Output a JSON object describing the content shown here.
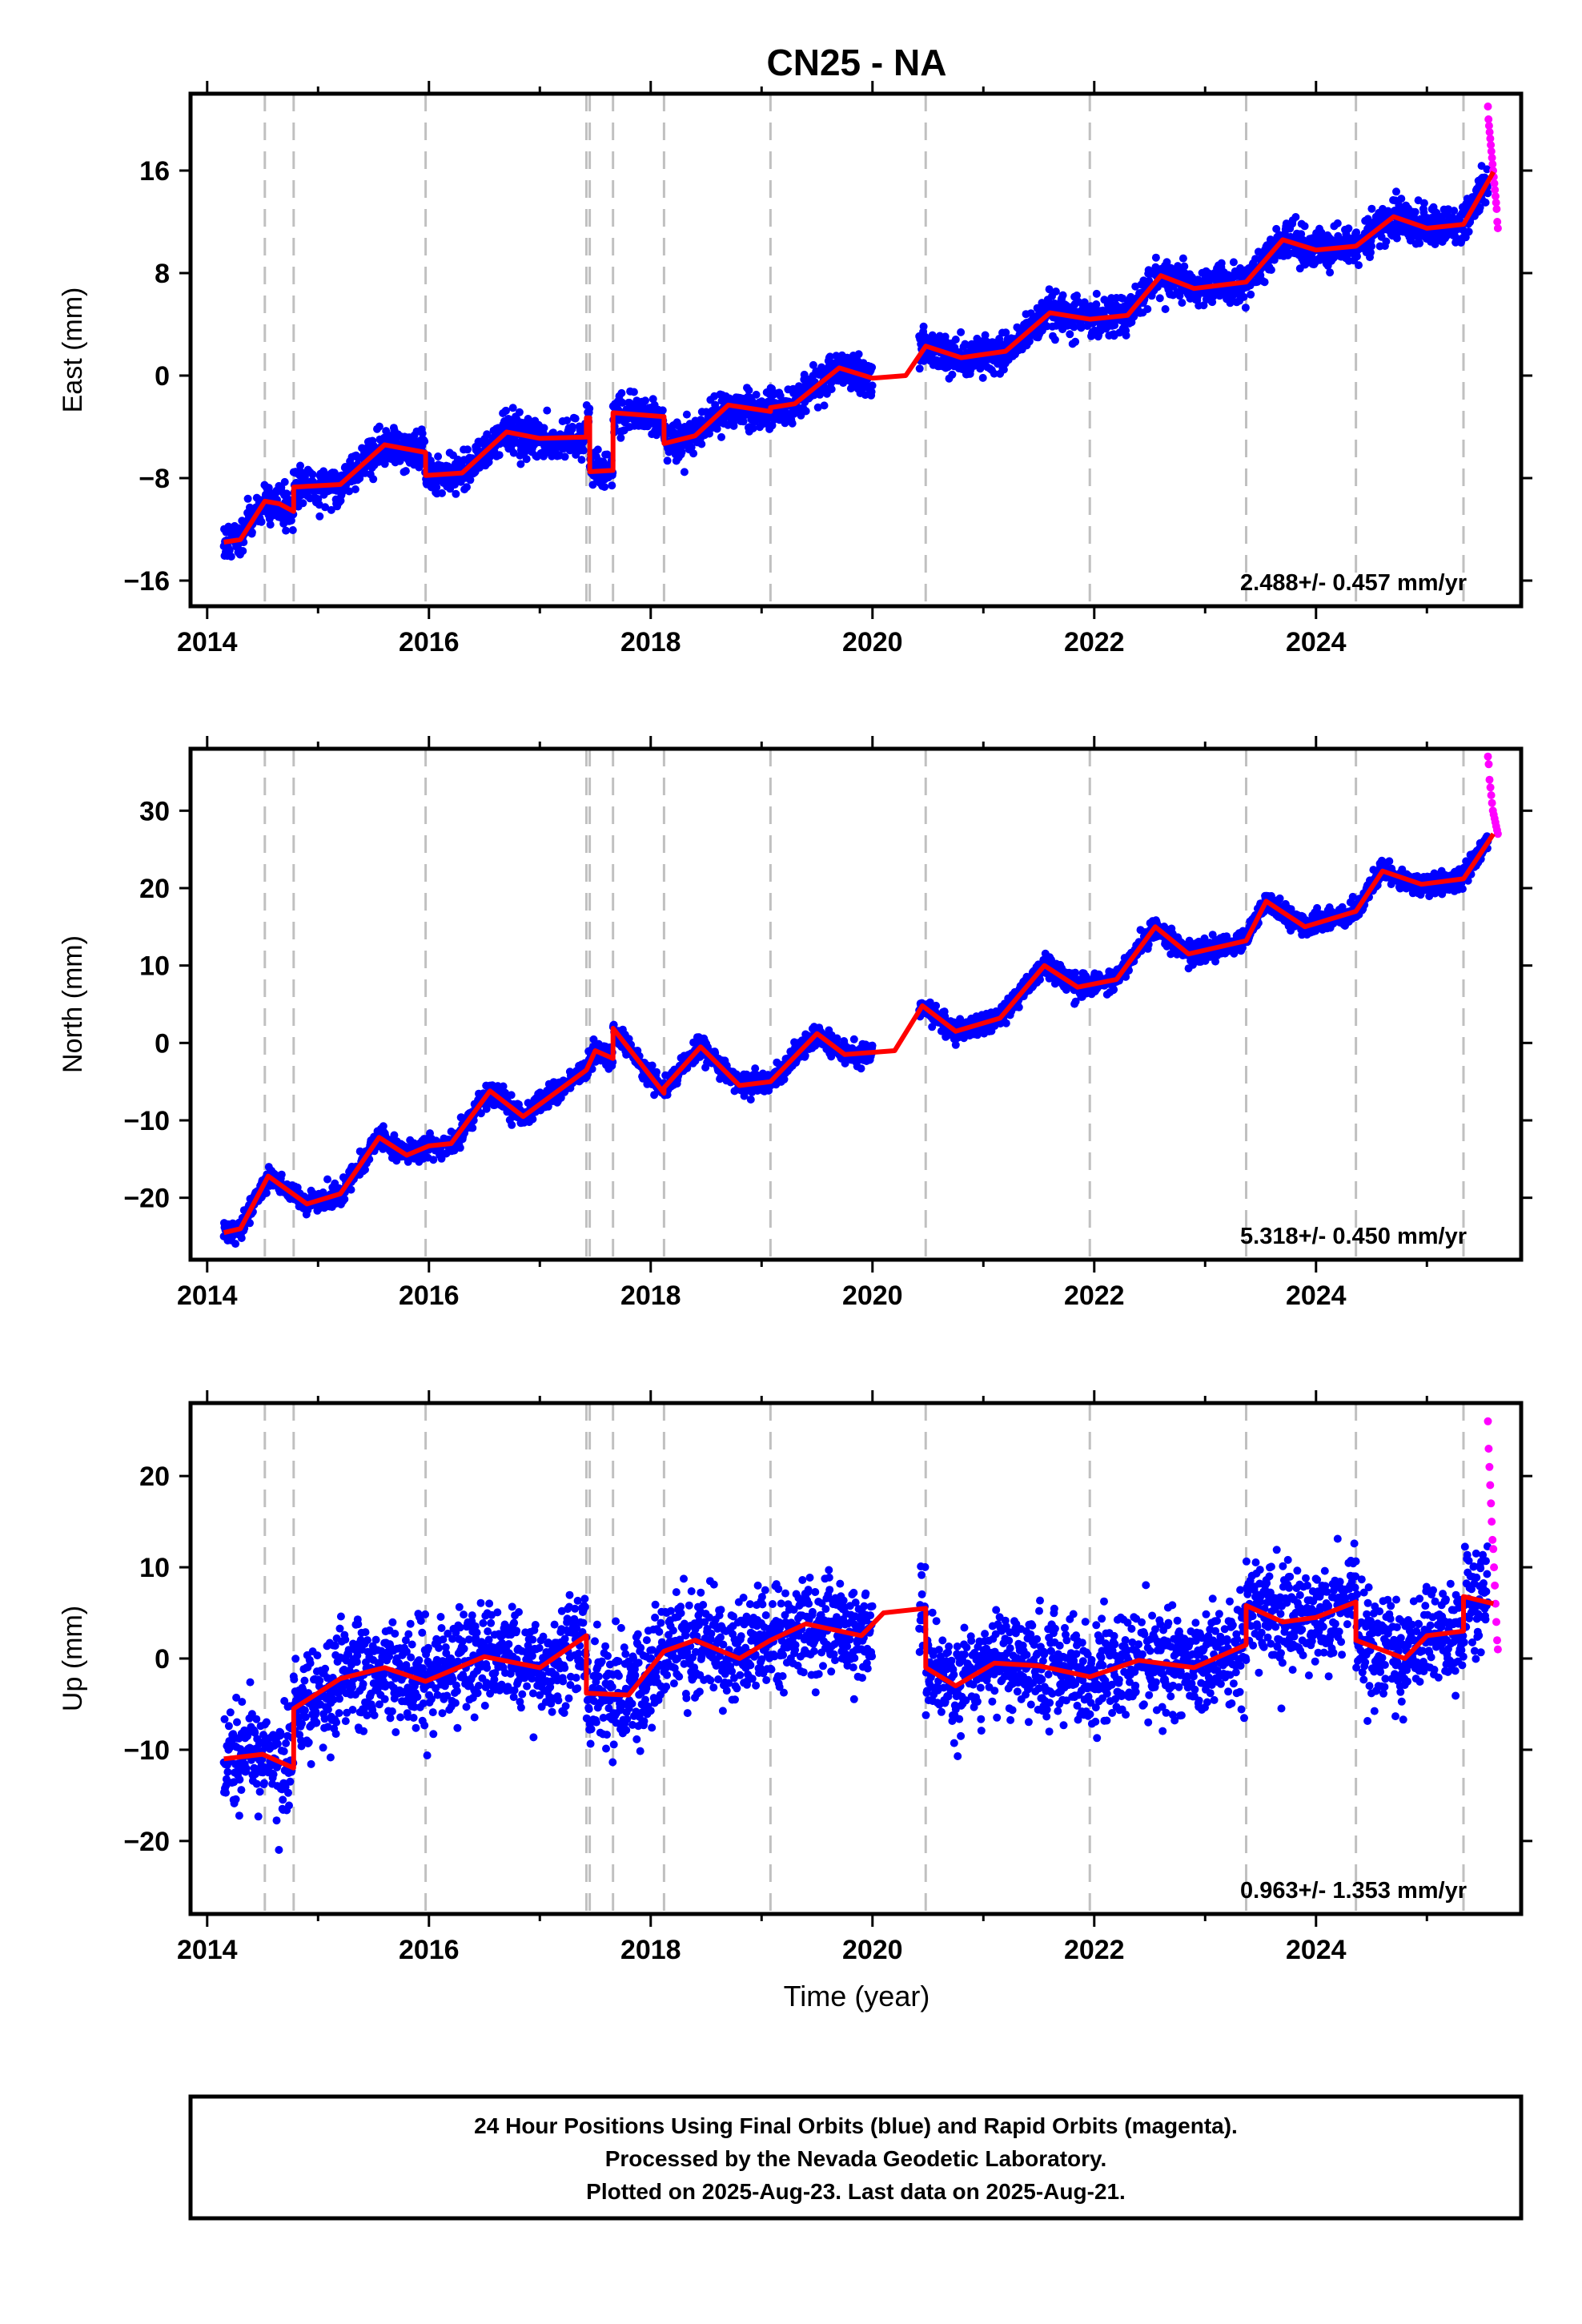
{
  "title": "CN25 - NA",
  "xlabel": "Time (year)",
  "caption": [
    "24 Hour Positions Using Final Orbits (blue) and Rapid Orbits (magenta).",
    "Processed by the Nevada Geodetic Laboratory.",
    "Plotted on 2025-Aug-23. Last data on 2025-Aug-21."
  ],
  "colors": {
    "final": "#0000ff",
    "rapid": "#ff00ff",
    "model": "#ff0000",
    "steps": "#c0c0c0",
    "axes": "#000000"
  },
  "chart_data": [
    {
      "type": "scatter",
      "ylabel": "East (mm)",
      "xlim": [
        2013.85,
        2025.85
      ],
      "ylim": [
        -18,
        22
      ],
      "xticks": [
        2014,
        2016,
        2018,
        2020,
        2022,
        2024
      ],
      "yticks": [
        -16,
        -8,
        0,
        8,
        16
      ],
      "rate_label": "2.488+/- 0.457 mm/yr",
      "step_epochs": [
        2014.52,
        2014.78,
        2015.97,
        2017.42,
        2017.45,
        2017.66,
        2018.12,
        2019.08,
        2020.48,
        2021.96,
        2023.37,
        2024.36,
        2025.33
      ],
      "data_start": 2014.15,
      "data_end": 2025.55,
      "rapid_start": 2025.55,
      "rapid_end": 2025.64,
      "gap": [
        2020.0,
        2020.42
      ],
      "noise_sigma": 1.3,
      "rapid_points": [
        21,
        20,
        19.5,
        19,
        18.5,
        18,
        17.5,
        17,
        16.5,
        16,
        15.5,
        15,
        14.5,
        14,
        13.5,
        13,
        12,
        11.5
      ],
      "model": [
        [
          2014.15,
          -13.0
        ],
        [
          2014.3,
          -12.8
        ],
        [
          2014.52,
          -9.8
        ],
        [
          2014.65,
          -10.0
        ],
        [
          2014.78,
          -10.6
        ],
        [
          2014.78,
          -8.7
        ],
        [
          2015.2,
          -8.5
        ],
        [
          2015.6,
          -5.4
        ],
        [
          2015.97,
          -6.0
        ],
        [
          2015.97,
          -7.8
        ],
        [
          2016.3,
          -7.6
        ],
        [
          2016.7,
          -4.4
        ],
        [
          2017.0,
          -4.9
        ],
        [
          2017.42,
          -4.8
        ],
        [
          2017.42,
          -3.3
        ],
        [
          2017.45,
          -3.3
        ],
        [
          2017.45,
          -7.5
        ],
        [
          2017.66,
          -7.4
        ],
        [
          2017.66,
          -2.9
        ],
        [
          2018.12,
          -3.2
        ],
        [
          2018.12,
          -5.3
        ],
        [
          2018.4,
          -4.7
        ],
        [
          2018.7,
          -2.3
        ],
        [
          2019.08,
          -2.8
        ],
        [
          2019.08,
          -2.5
        ],
        [
          2019.3,
          -2.2
        ],
        [
          2019.7,
          0.6
        ],
        [
          2020.0,
          -0.2
        ],
        [
          2020.3,
          0.0
        ],
        [
          2020.48,
          2.3
        ],
        [
          2020.8,
          1.4
        ],
        [
          2021.2,
          1.9
        ],
        [
          2021.6,
          4.9
        ],
        [
          2021.96,
          4.4
        ],
        [
          2022.3,
          4.7
        ],
        [
          2022.6,
          7.8
        ],
        [
          2022.9,
          6.8
        ],
        [
          2023.37,
          7.3
        ],
        [
          2023.7,
          10.6
        ],
        [
          2024.0,
          9.8
        ],
        [
          2024.36,
          10.1
        ],
        [
          2024.7,
          12.4
        ],
        [
          2025.0,
          11.5
        ],
        [
          2025.33,
          11.8
        ],
        [
          2025.6,
          15.9
        ]
      ]
    },
    {
      "type": "scatter",
      "ylabel": "North (mm)",
      "xlim": [
        2013.85,
        2025.85
      ],
      "ylim": [
        -28,
        38
      ],
      "xticks": [
        2014,
        2016,
        2018,
        2020,
        2022,
        2024
      ],
      "yticks": [
        -20,
        -10,
        0,
        10,
        20,
        30
      ],
      "rate_label": "5.318+/- 0.450 mm/yr",
      "step_epochs": [
        2014.52,
        2014.78,
        2015.97,
        2017.42,
        2017.45,
        2017.66,
        2018.12,
        2019.08,
        2020.48,
        2021.96,
        2023.37,
        2024.36,
        2025.33
      ],
      "data_start": 2014.15,
      "data_end": 2025.55,
      "rapid_start": 2025.55,
      "rapid_end": 2025.64,
      "gap": [
        2020.0,
        2020.42
      ],
      "noise_sigma": 1.2,
      "rapid_points": [
        37,
        36,
        34,
        33,
        32,
        31,
        30,
        29.5,
        29,
        28.5,
        28,
        27.5,
        27
      ],
      "model": [
        [
          2014.15,
          -24.5
        ],
        [
          2014.3,
          -24.0
        ],
        [
          2014.55,
          -17.2
        ],
        [
          2014.9,
          -20.8
        ],
        [
          2015.2,
          -19.5
        ],
        [
          2015.55,
          -12.2
        ],
        [
          2015.8,
          -14.5
        ],
        [
          2016.0,
          -13.3
        ],
        [
          2016.2,
          -13.0
        ],
        [
          2016.55,
          -6.2
        ],
        [
          2016.85,
          -9.5
        ],
        [
          2017.42,
          -3.5
        ],
        [
          2017.5,
          -1.0
        ],
        [
          2017.66,
          -2.0
        ],
        [
          2017.66,
          1.9
        ],
        [
          2018.12,
          -6.5
        ],
        [
          2018.12,
          -5.8
        ],
        [
          2018.45,
          -0.5
        ],
        [
          2018.8,
          -5.5
        ],
        [
          2019.08,
          -5.0
        ],
        [
          2019.5,
          1.2
        ],
        [
          2019.75,
          -1.5
        ],
        [
          2020.2,
          -1.0
        ],
        [
          2020.45,
          4.8
        ],
        [
          2020.75,
          1.5
        ],
        [
          2021.15,
          3.2
        ],
        [
          2021.55,
          10.0
        ],
        [
          2021.85,
          7.2
        ],
        [
          2022.2,
          8.2
        ],
        [
          2022.55,
          15.0
        ],
        [
          2022.85,
          11.5
        ],
        [
          2023.37,
          13.2
        ],
        [
          2023.55,
          18.3
        ],
        [
          2023.9,
          15.0
        ],
        [
          2024.36,
          17.0
        ],
        [
          2024.6,
          22.2
        ],
        [
          2024.95,
          20.5
        ],
        [
          2025.33,
          21.2
        ],
        [
          2025.6,
          27.0
        ]
      ]
    },
    {
      "type": "scatter",
      "ylabel": "Up (mm)",
      "xlim": [
        2013.85,
        2025.85
      ],
      "ylim": [
        -28,
        28
      ],
      "xticks": [
        2014,
        2016,
        2018,
        2020,
        2022,
        2024
      ],
      "yticks": [
        -20,
        -10,
        0,
        10,
        20
      ],
      "rate_label": "0.963+/- 1.353 mm/yr",
      "step_epochs": [
        2014.52,
        2014.78,
        2015.97,
        2017.42,
        2017.45,
        2017.66,
        2018.12,
        2019.08,
        2020.48,
        2021.96,
        2023.37,
        2024.36,
        2025.33
      ],
      "data_start": 2014.15,
      "data_end": 2025.55,
      "rapid_start": 2025.55,
      "rapid_end": 2025.64,
      "gap": [
        2020.0,
        2020.42
      ],
      "noise_sigma": 4.8,
      "rapid_points": [
        26,
        23,
        21,
        19,
        17,
        15,
        13,
        12,
        10,
        8,
        6,
        4,
        2,
        1
      ],
      "model": [
        [
          2014.15,
          -11.0
        ],
        [
          2014.5,
          -10.5
        ],
        [
          2014.78,
          -12.0
        ],
        [
          2014.78,
          -5.5
        ],
        [
          2015.2,
          -2.2
        ],
        [
          2015.6,
          -1.0
        ],
        [
          2015.97,
          -2.5
        ],
        [
          2016.5,
          0.2
        ],
        [
          2017.0,
          -1.0
        ],
        [
          2017.42,
          2.5
        ],
        [
          2017.42,
          -3.8
        ],
        [
          2017.8,
          -4.0
        ],
        [
          2018.12,
          0.8
        ],
        [
          2018.4,
          2.0
        ],
        [
          2018.8,
          0.0
        ],
        [
          2019.08,
          2.0
        ],
        [
          2019.4,
          3.8
        ],
        [
          2019.9,
          2.5
        ],
        [
          2020.1,
          5.0
        ],
        [
          2020.48,
          5.5
        ],
        [
          2020.48,
          -1.0
        ],
        [
          2020.75,
          -3.0
        ],
        [
          2021.1,
          -0.5
        ],
        [
          2021.5,
          -0.8
        ],
        [
          2021.96,
          -2.0
        ],
        [
          2022.4,
          -0.2
        ],
        [
          2022.9,
          -1.0
        ],
        [
          2023.37,
          1.5
        ],
        [
          2023.37,
          5.8
        ],
        [
          2023.7,
          4.0
        ],
        [
          2024.0,
          4.5
        ],
        [
          2024.36,
          6.2
        ],
        [
          2024.36,
          2.0
        ],
        [
          2024.8,
          0.0
        ],
        [
          2025.0,
          2.5
        ],
        [
          2025.33,
          3.0
        ],
        [
          2025.33,
          6.8
        ],
        [
          2025.6,
          6.0
        ]
      ]
    }
  ]
}
